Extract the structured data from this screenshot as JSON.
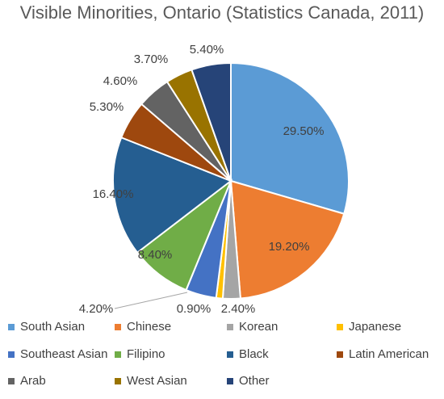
{
  "chart_data": {
    "type": "pie",
    "title": "Visible Minorities, Ontario (Statistics Canada, 2011)",
    "slices": [
      {
        "name": "South Asian",
        "value": 29.5,
        "label": "29.50%",
        "color": "#5b9bd5"
      },
      {
        "name": "Chinese",
        "value": 19.2,
        "label": "19.20%",
        "color": "#ed7d31"
      },
      {
        "name": "Korean",
        "value": 2.4,
        "label": "2.40%",
        "color": "#a5a5a5"
      },
      {
        "name": "Japanese",
        "value": 0.9,
        "label": "0.90%",
        "color": "#ffc000"
      },
      {
        "name": "Southeast Asian",
        "value": 4.2,
        "label": "4.20%",
        "color": "#4472c4"
      },
      {
        "name": "Filipino",
        "value": 8.4,
        "label": "8.40%",
        "color": "#70ad47"
      },
      {
        "name": "Black",
        "value": 16.4,
        "label": "16.40%",
        "color": "#255e91"
      },
      {
        "name": "Latin American",
        "value": 5.3,
        "label": "5.30%",
        "color": "#9e480e"
      },
      {
        "name": "Arab",
        "value": 4.6,
        "label": "4.60%",
        "color": "#636363"
      },
      {
        "name": "West Asian",
        "value": 3.7,
        "label": "3.70%",
        "color": "#997300"
      },
      {
        "name": "Other",
        "value": 5.4,
        "label": "5.40%",
        "color": "#264478"
      }
    ],
    "legend_position": "bottom"
  }
}
